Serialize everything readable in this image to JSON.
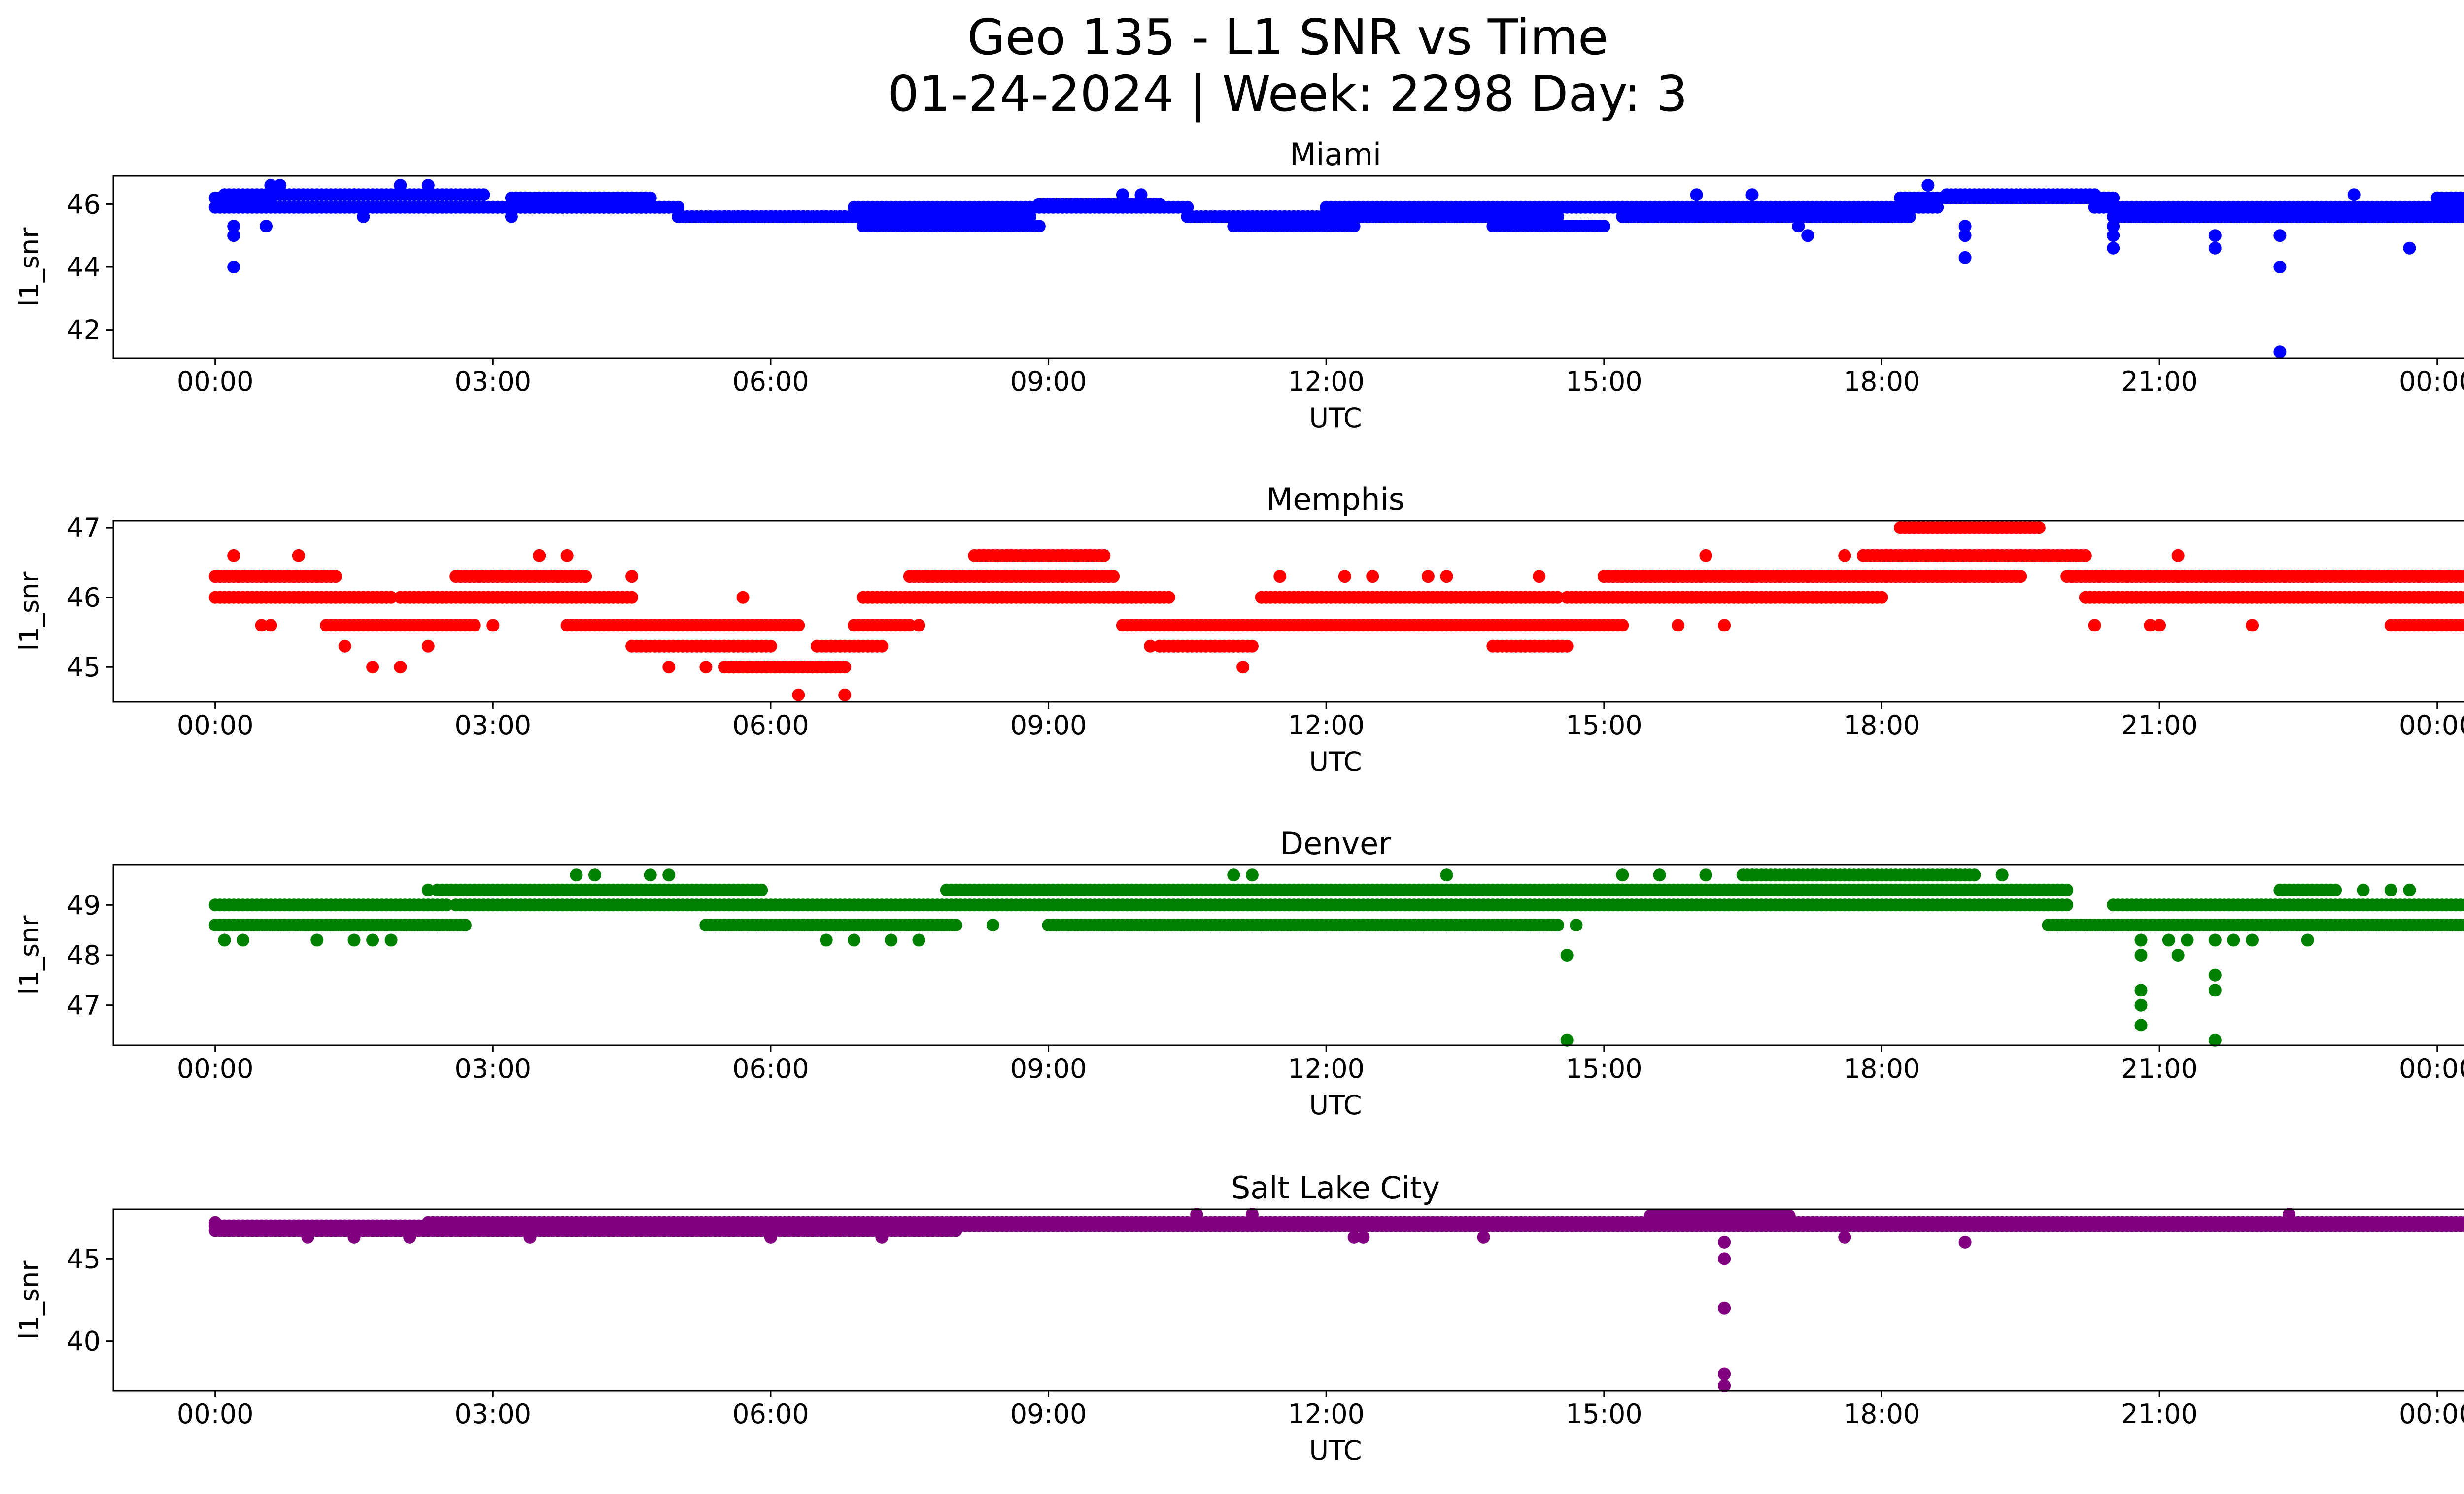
{
  "figure": {
    "title_line1": "Geo 135 - L1 SNR vs Time",
    "title_line2": "01-24-2024 | Week: 2298 Day: 3"
  },
  "chart_data": [
    {
      "type": "scatter",
      "title": "Miami",
      "xlabel": "UTC",
      "ylabel": "l1_snr",
      "color": "#0000ff",
      "xlim": [
        -1.1,
        25.3
      ],
      "ylim": [
        41.1,
        46.9
      ],
      "yticks": [
        42,
        44,
        46
      ],
      "xticks": [
        "00:00",
        "03:00",
        "06:00",
        "09:00",
        "12:00",
        "15:00",
        "18:00",
        "21:00",
        "00:00"
      ],
      "bands": [
        {
          "x": [
            0.0,
            0.6
          ],
          "y": 46.2
        },
        {
          "x": [
            0.0,
            5.0
          ],
          "y": 45.9
        },
        {
          "x": [
            0.1,
            1.5
          ],
          "y": 46.3
        },
        {
          "x": [
            1.5,
            2.9
          ],
          "y": 46.3
        },
        {
          "x": [
            3.0,
            4.9
          ],
          "y": 45.9
        },
        {
          "x": [
            3.2,
            4.7
          ],
          "y": 46.2
        },
        {
          "x": [
            5.0,
            6.9
          ],
          "y": 45.6
        },
        {
          "x": [
            5.5,
            8.8
          ],
          "y": 45.6
        },
        {
          "x": [
            6.9,
            8.8
          ],
          "y": 45.9
        },
        {
          "x": [
            7.0,
            8.9
          ],
          "y": 45.3
        },
        {
          "x": [
            8.8,
            10.5
          ],
          "y": 45.9
        },
        {
          "x": [
            8.9,
            10.2
          ],
          "y": 46.0
        },
        {
          "x": [
            10.5,
            14.5
          ],
          "y": 45.6
        },
        {
          "x": [
            11.0,
            12.3
          ],
          "y": 45.3
        },
        {
          "x": [
            12.0,
            15.2
          ],
          "y": 45.9
        },
        {
          "x": [
            13.8,
            15.0
          ],
          "y": 45.3
        },
        {
          "x": [
            15.2,
            18.3
          ],
          "y": 45.6
        },
        {
          "x": [
            15.2,
            18.6
          ],
          "y": 45.9
        },
        {
          "x": [
            18.2,
            20.5
          ],
          "y": 46.2
        },
        {
          "x": [
            18.7,
            20.3
          ],
          "y": 46.3
        },
        {
          "x": [
            20.3,
            25.0
          ],
          "y": 45.9
        },
        {
          "x": [
            20.5,
            25.0
          ],
          "y": 45.6
        },
        {
          "x": [
            24.0,
            25.0
          ],
          "y": 46.2
        }
      ],
      "extra": [
        [
          0.2,
          44.0
        ],
        [
          0.2,
          45.0
        ],
        [
          0.2,
          45.3
        ],
        [
          0.55,
          45.3
        ],
        [
          0.6,
          46.6
        ],
        [
          0.7,
          46.6
        ],
        [
          1.6,
          45.6
        ],
        [
          2.0,
          46.6
        ],
        [
          2.3,
          46.6
        ],
        [
          3.2,
          45.6
        ],
        [
          9.8,
          46.3
        ],
        [
          10.0,
          46.3
        ],
        [
          16.0,
          46.3
        ],
        [
          16.6,
          46.3
        ],
        [
          17.2,
          45.0
        ],
        [
          17.1,
          45.3
        ],
        [
          18.9,
          44.3
        ],
        [
          18.9,
          45.3
        ],
        [
          18.9,
          45.0
        ],
        [
          18.5,
          46.6
        ],
        [
          20.5,
          44.6
        ],
        [
          20.5,
          45.0
        ],
        [
          20.5,
          45.3
        ],
        [
          21.6,
          44.6
        ],
        [
          21.6,
          45.0
        ],
        [
          22.3,
          44.0
        ],
        [
          22.3,
          45.0
        ],
        [
          22.3,
          41.3
        ],
        [
          23.7,
          44.6
        ],
        [
          23.1,
          46.3
        ],
        [
          24.5,
          46.3
        ],
        [
          24.8,
          46.3
        ]
      ]
    },
    {
      "type": "scatter",
      "title": "Memphis",
      "xlabel": "UTC",
      "ylabel": "l1_snr",
      "color": "#ff0000",
      "xlim": [
        -1.1,
        25.3
      ],
      "ylim": [
        44.5,
        47.1
      ],
      "yticks": [
        45,
        46,
        47
      ],
      "xticks": [
        "00:00",
        "03:00",
        "06:00",
        "09:00",
        "12:00",
        "15:00",
        "18:00",
        "21:00",
        "00:00"
      ],
      "bands": [
        {
          "x": [
            0.0,
            1.3
          ],
          "y": 46.3
        },
        {
          "x": [
            0.0,
            1.9
          ],
          "y": 46.0
        },
        {
          "x": [
            1.2,
            2.8
          ],
          "y": 45.6
        },
        {
          "x": [
            2.0,
            4.5
          ],
          "y": 46.0
        },
        {
          "x": [
            2.6,
            4.0
          ],
          "y": 46.3
        },
        {
          "x": [
            3.8,
            6.3
          ],
          "y": 45.6
        },
        {
          "x": [
            4.5,
            6.0
          ],
          "y": 45.3
        },
        {
          "x": [
            5.5,
            6.8
          ],
          "y": 45.0
        },
        {
          "x": [
            6.5,
            7.2
          ],
          "y": 45.3
        },
        {
          "x": [
            6.9,
            7.5
          ],
          "y": 45.6
        },
        {
          "x": [
            7.0,
            9.8
          ],
          "y": 46.0
        },
        {
          "x": [
            7.5,
            9.7
          ],
          "y": 46.3
        },
        {
          "x": [
            8.2,
            9.6
          ],
          "y": 46.6
        },
        {
          "x": [
            9.6,
            10.3
          ],
          "y": 46.0
        },
        {
          "x": [
            9.8,
            15.2
          ],
          "y": 45.6
        },
        {
          "x": [
            10.2,
            11.2
          ],
          "y": 45.3
        },
        {
          "x": [
            11.3,
            14.5
          ],
          "y": 46.0
        },
        {
          "x": [
            13.8,
            14.6
          ],
          "y": 45.3
        },
        {
          "x": [
            14.6,
            18.0
          ],
          "y": 46.0
        },
        {
          "x": [
            15.0,
            19.5
          ],
          "y": 46.3
        },
        {
          "x": [
            17.8,
            20.2
          ],
          "y": 46.6
        },
        {
          "x": [
            18.2,
            19.7
          ],
          "y": 47.0
        },
        {
          "x": [
            20.0,
            25.0
          ],
          "y": 46.3
        },
        {
          "x": [
            20.2,
            25.0
          ],
          "y": 46.0
        },
        {
          "x": [
            23.5,
            25.0
          ],
          "y": 45.6
        }
      ],
      "extra": [
        [
          0.2,
          46.6
        ],
        [
          0.9,
          46.6
        ],
        [
          0.5,
          45.6
        ],
        [
          0.6,
          45.6
        ],
        [
          1.4,
          45.3
        ],
        [
          1.7,
          45.0
        ],
        [
          2.0,
          45.0
        ],
        [
          2.3,
          45.3
        ],
        [
          3.0,
          45.6
        ],
        [
          3.5,
          46.6
        ],
        [
          3.8,
          46.6
        ],
        [
          4.5,
          46.3
        ],
        [
          4.9,
          45.0
        ],
        [
          5.3,
          45.0
        ],
        [
          5.6,
          45.0
        ],
        [
          5.7,
          46.0
        ],
        [
          6.3,
          44.6
        ],
        [
          6.8,
          44.6
        ],
        [
          6.9,
          45.6
        ],
        [
          7.6,
          45.6
        ],
        [
          8.4,
          46.0
        ],
        [
          9.1,
          46.0
        ],
        [
          10.1,
          45.3
        ],
        [
          11.1,
          45.0
        ],
        [
          11.5,
          46.3
        ],
        [
          12.2,
          46.3
        ],
        [
          12.5,
          46.3
        ],
        [
          13.1,
          46.3
        ],
        [
          13.3,
          46.3
        ],
        [
          14.3,
          46.3
        ],
        [
          14.5,
          45.3
        ],
        [
          15.8,
          45.6
        ],
        [
          16.1,
          46.6
        ],
        [
          16.3,
          45.6
        ],
        [
          17.6,
          46.6
        ],
        [
          17.9,
          46.6
        ],
        [
          18.7,
          46.3
        ],
        [
          20.3,
          45.6
        ],
        [
          21.2,
          46.6
        ],
        [
          20.9,
          45.6
        ],
        [
          21.0,
          45.6
        ],
        [
          22.0,
          45.6
        ]
      ]
    },
    {
      "type": "scatter",
      "title": "Denver",
      "xlabel": "UTC",
      "ylabel": "l1_snr",
      "color": "#008000",
      "xlim": [
        -1.1,
        25.3
      ],
      "ylim": [
        46.2,
        49.8
      ],
      "yticks": [
        47,
        48,
        49
      ],
      "xticks": [
        "00:00",
        "03:00",
        "06:00",
        "09:00",
        "12:00",
        "15:00",
        "18:00",
        "21:00",
        "00:00"
      ],
      "bands": [
        {
          "x": [
            0.0,
            2.7
          ],
          "y": 48.6
        },
        {
          "x": [
            0.0,
            2.5
          ],
          "y": 49.0
        },
        {
          "x": [
            2.4,
            5.9
          ],
          "y": 49.3
        },
        {
          "x": [
            2.6,
            8.0
          ],
          "y": 49.0
        },
        {
          "x": [
            5.3,
            8.0
          ],
          "y": 48.6
        },
        {
          "x": [
            7.9,
            15.2
          ],
          "y": 49.3
        },
        {
          "x": [
            8.0,
            20.0
          ],
          "y": 49.0
        },
        {
          "x": [
            9.0,
            14.5
          ],
          "y": 48.6
        },
        {
          "x": [
            14.5,
            20.0
          ],
          "y": 49.3
        },
        {
          "x": [
            16.5,
            19.0
          ],
          "y": 49.6
        },
        {
          "x": [
            19.8,
            25.0
          ],
          "y": 48.6
        },
        {
          "x": [
            20.5,
            25.0
          ],
          "y": 49.0
        },
        {
          "x": [
            22.3,
            22.9
          ],
          "y": 49.3
        }
      ],
      "extra": [
        [
          0.1,
          48.3
        ],
        [
          0.3,
          48.3
        ],
        [
          1.1,
          48.3
        ],
        [
          1.5,
          48.3
        ],
        [
          1.7,
          48.3
        ],
        [
          1.9,
          48.3
        ],
        [
          2.3,
          49.3
        ],
        [
          3.9,
          49.6
        ],
        [
          4.1,
          49.6
        ],
        [
          4.7,
          49.6
        ],
        [
          4.9,
          49.6
        ],
        [
          6.6,
          48.3
        ],
        [
          6.9,
          48.3
        ],
        [
          7.3,
          48.3
        ],
        [
          7.6,
          48.3
        ],
        [
          8.4,
          48.6
        ],
        [
          9.7,
          48.6
        ],
        [
          10.4,
          48.6
        ],
        [
          10.7,
          48.6
        ],
        [
          11.0,
          49.6
        ],
        [
          11.2,
          49.6
        ],
        [
          12.4,
          48.6
        ],
        [
          13.3,
          49.6
        ],
        [
          14.4,
          48.6
        ],
        [
          14.6,
          48.0
        ],
        [
          14.6,
          46.3
        ],
        [
          14.7,
          48.6
        ],
        [
          15.2,
          49.6
        ],
        [
          15.6,
          49.6
        ],
        [
          16.1,
          49.6
        ],
        [
          16.6,
          49.6
        ],
        [
          18.8,
          49.6
        ],
        [
          19.3,
          49.6
        ],
        [
          20.8,
          48.3
        ],
        [
          20.8,
          48.0
        ],
        [
          20.8,
          47.3
        ],
        [
          20.8,
          47.0
        ],
        [
          20.8,
          46.6
        ],
        [
          21.1,
          48.3
        ],
        [
          21.2,
          48.0
        ],
        [
          21.3,
          48.3
        ],
        [
          21.6,
          48.3
        ],
        [
          21.6,
          47.6
        ],
        [
          21.6,
          47.3
        ],
        [
          21.6,
          46.3
        ],
        [
          21.8,
          48.3
        ],
        [
          22.0,
          48.3
        ],
        [
          22.6,
          48.3
        ],
        [
          23.2,
          49.3
        ],
        [
          23.5,
          49.3
        ],
        [
          23.7,
          49.3
        ]
      ]
    },
    {
      "type": "scatter",
      "title": "Salt Lake City",
      "xlabel": "UTC",
      "ylabel": "l1_snr",
      "color": "#800080",
      "xlim": [
        -1.1,
        25.3
      ],
      "ylim": [
        37.0,
        48.0
      ],
      "yticks": [
        40,
        45
      ],
      "xticks": [
        "00:00",
        "03:00",
        "06:00",
        "09:00",
        "12:00",
        "15:00",
        "18:00",
        "21:00",
        "00:00"
      ],
      "bands": [
        {
          "x": [
            0.0,
            2.5
          ],
          "y": 46.7
        },
        {
          "x": [
            0.0,
            25.0
          ],
          "y": 47.0
        },
        {
          "x": [
            2.3,
            25.0
          ],
          "y": 47.2
        },
        {
          "x": [
            2.5,
            8.0
          ],
          "y": 46.7
        },
        {
          "x": [
            15.5,
            17.0
          ],
          "y": 47.6
        }
      ],
      "extra": [
        [
          0.0,
          47.2
        ],
        [
          1.0,
          46.3
        ],
        [
          1.5,
          46.3
        ],
        [
          2.1,
          46.3
        ],
        [
          3.4,
          46.3
        ],
        [
          6.0,
          46.3
        ],
        [
          7.2,
          46.3
        ],
        [
          10.6,
          47.7
        ],
        [
          11.2,
          47.7
        ],
        [
          12.3,
          46.3
        ],
        [
          12.4,
          46.3
        ],
        [
          13.7,
          46.3
        ],
        [
          16.3,
          46.0
        ],
        [
          16.3,
          45.0
        ],
        [
          16.3,
          42.0
        ],
        [
          16.3,
          38.0
        ],
        [
          16.3,
          37.3
        ],
        [
          17.6,
          46.3
        ],
        [
          18.9,
          46.0
        ],
        [
          22.4,
          47.7
        ],
        [
          24.9,
          46.7
        ]
      ]
    }
  ]
}
